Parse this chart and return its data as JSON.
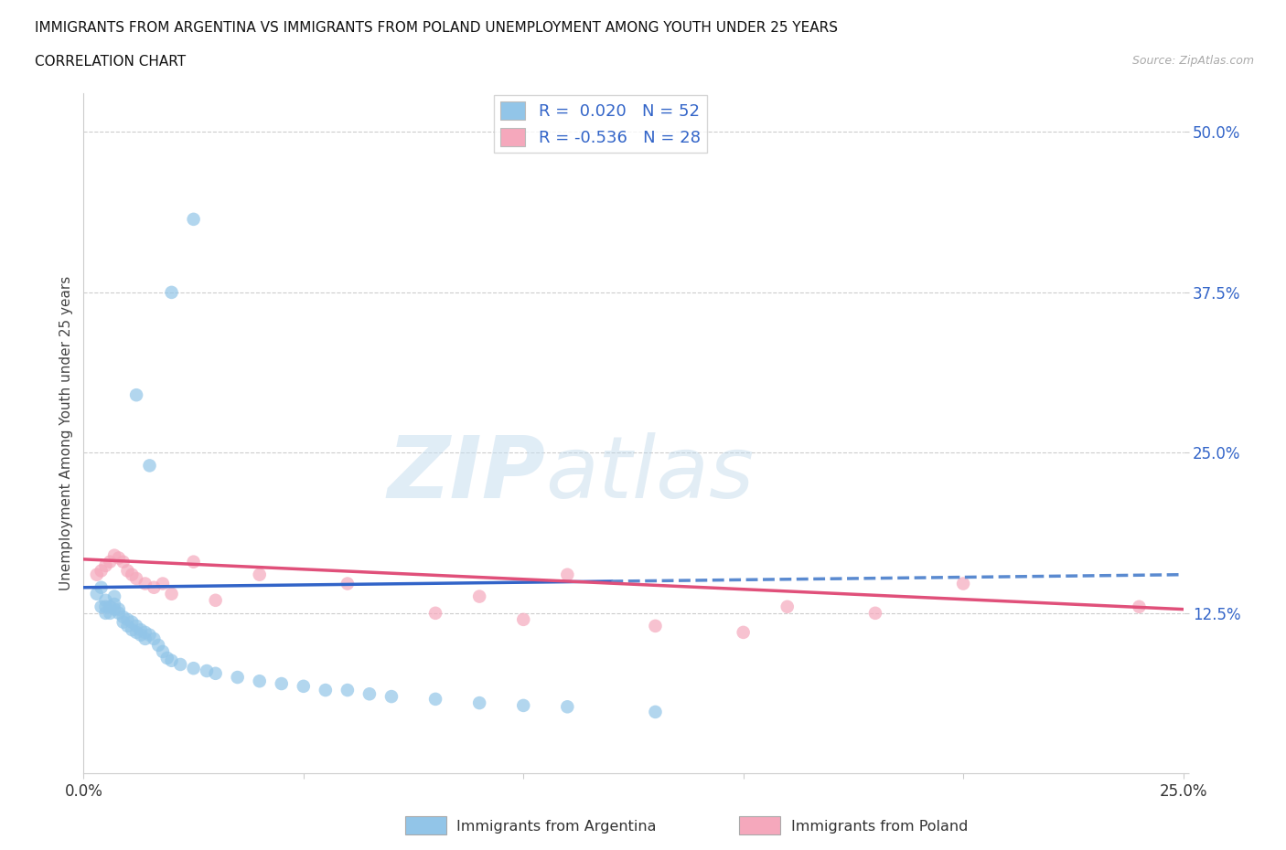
{
  "title_line1": "IMMIGRANTS FROM ARGENTINA VS IMMIGRANTS FROM POLAND UNEMPLOYMENT AMONG YOUTH UNDER 25 YEARS",
  "title_line2": "CORRELATION CHART",
  "source": "Source: ZipAtlas.com",
  "ylabel": "Unemployment Among Youth under 25 years",
  "xlim": [
    0.0,
    0.25
  ],
  "ylim": [
    0.0,
    0.53
  ],
  "yticks": [
    0.0,
    0.125,
    0.25,
    0.375,
    0.5
  ],
  "ytick_labels": [
    "",
    "12.5%",
    "25.0%",
    "37.5%",
    "50.0%"
  ],
  "xticks": [
    0.0,
    0.05,
    0.1,
    0.15,
    0.2,
    0.25
  ],
  "xtick_labels": [
    "0.0%",
    "",
    "",
    "",
    "",
    "25.0%"
  ],
  "argentina_color": "#92c5e8",
  "poland_color": "#f5a8bc",
  "argentina_line_color": "#3264c8",
  "argentina_line_color_dash": "#5a8ad0",
  "poland_line_color": "#e0507a",
  "argentina_R": "0.020",
  "argentina_N": "52",
  "poland_R": "-0.536",
  "poland_N": "28",
  "watermark_zip": "ZIP",
  "watermark_atlas": "atlas",
  "legend_label_argentina": "Immigrants from Argentina",
  "legend_label_poland": "Immigrants from Poland",
  "arg_trend_x0": 0.0,
  "arg_trend_y0": 0.145,
  "arg_trend_x1": 0.25,
  "arg_trend_y1": 0.155,
  "pol_trend_x0": 0.0,
  "pol_trend_y0": 0.167,
  "pol_trend_x1": 0.25,
  "pol_trend_y1": 0.128,
  "argentina_x": [
    0.003,
    0.004,
    0.004,
    0.005,
    0.005,
    0.005,
    0.006,
    0.006,
    0.007,
    0.007,
    0.007,
    0.008,
    0.008,
    0.009,
    0.009,
    0.01,
    0.01,
    0.011,
    0.011,
    0.012,
    0.012,
    0.013,
    0.013,
    0.014,
    0.014,
    0.015,
    0.016,
    0.017,
    0.018,
    0.019,
    0.02,
    0.022,
    0.025,
    0.028,
    0.03,
    0.035,
    0.04,
    0.045,
    0.05,
    0.055,
    0.06,
    0.065,
    0.07,
    0.08,
    0.09,
    0.1,
    0.11,
    0.13,
    0.012,
    0.015,
    0.02,
    0.025
  ],
  "argentina_y": [
    0.14,
    0.145,
    0.13,
    0.125,
    0.13,
    0.135,
    0.125,
    0.13,
    0.128,
    0.132,
    0.138,
    0.125,
    0.128,
    0.122,
    0.118,
    0.115,
    0.12,
    0.118,
    0.112,
    0.11,
    0.115,
    0.108,
    0.112,
    0.105,
    0.11,
    0.108,
    0.105,
    0.1,
    0.095,
    0.09,
    0.088,
    0.085,
    0.082,
    0.08,
    0.078,
    0.075,
    0.072,
    0.07,
    0.068,
    0.065,
    0.065,
    0.062,
    0.06,
    0.058,
    0.055,
    0.053,
    0.052,
    0.048,
    0.295,
    0.24,
    0.375,
    0.432
  ],
  "poland_x": [
    0.003,
    0.004,
    0.005,
    0.006,
    0.007,
    0.008,
    0.009,
    0.01,
    0.011,
    0.012,
    0.014,
    0.016,
    0.018,
    0.02,
    0.025,
    0.03,
    0.04,
    0.06,
    0.08,
    0.09,
    0.1,
    0.11,
    0.13,
    0.15,
    0.16,
    0.18,
    0.2,
    0.24
  ],
  "poland_y": [
    0.155,
    0.158,
    0.162,
    0.165,
    0.17,
    0.168,
    0.165,
    0.158,
    0.155,
    0.152,
    0.148,
    0.145,
    0.148,
    0.14,
    0.165,
    0.135,
    0.155,
    0.148,
    0.125,
    0.138,
    0.12,
    0.155,
    0.115,
    0.11,
    0.13,
    0.125,
    0.148,
    0.13
  ]
}
